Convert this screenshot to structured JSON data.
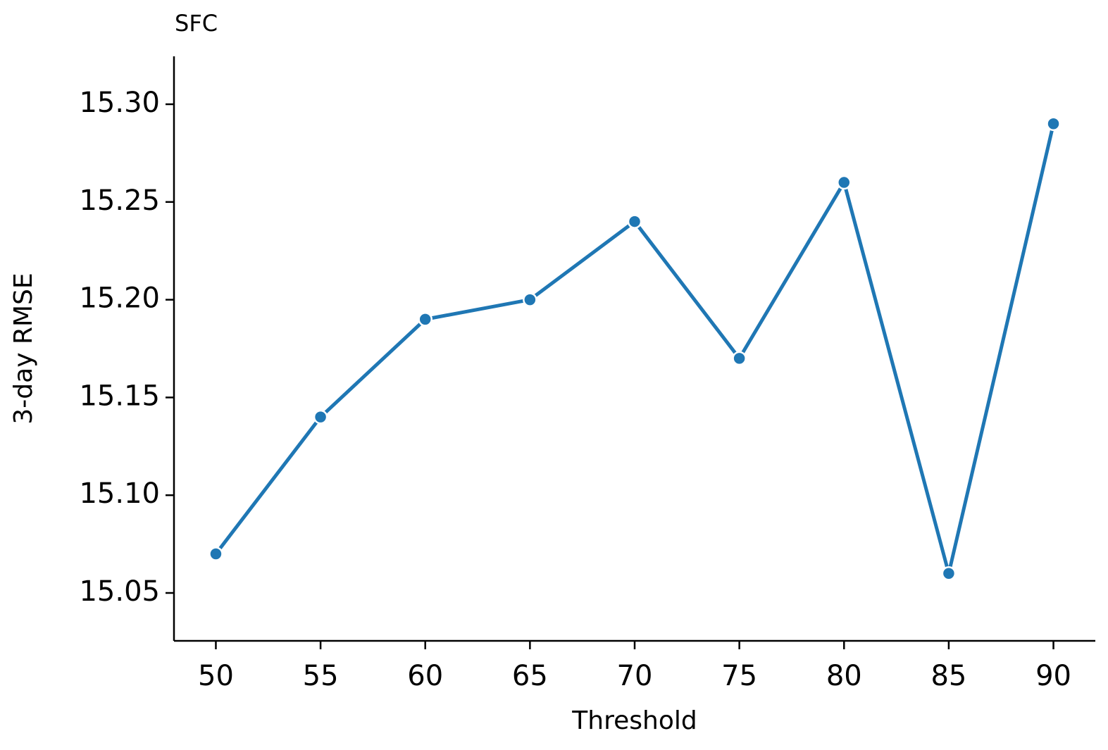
{
  "chart_data": {
    "type": "line",
    "title": "SFC",
    "x_label": "Threshold",
    "y_label": "3-day RMSE",
    "x": [
      50,
      55,
      60,
      65,
      70,
      75,
      80,
      85,
      90
    ],
    "series": [
      {
        "name": "SFC",
        "color": "#1f77b4",
        "values": [
          15.07,
          15.14,
          15.19,
          15.2,
          15.24,
          15.17,
          15.26,
          15.06,
          15.29
        ]
      }
    ],
    "xlim": [
      48,
      92
    ],
    "xticks": [
      50,
      55,
      60,
      65,
      70,
      75,
      80,
      85,
      90
    ],
    "ylim": [
      15.0255,
      15.3245
    ],
    "yticks": [
      15.05,
      {
        "value": 15.1,
        "label": "15.10"
      },
      15.15,
      {
        "value": 15.2,
        "label": "15.20"
      },
      15.25,
      {
        "value": 15.3,
        "label": "15.30"
      }
    ],
    "grid": false,
    "markers": true
  }
}
